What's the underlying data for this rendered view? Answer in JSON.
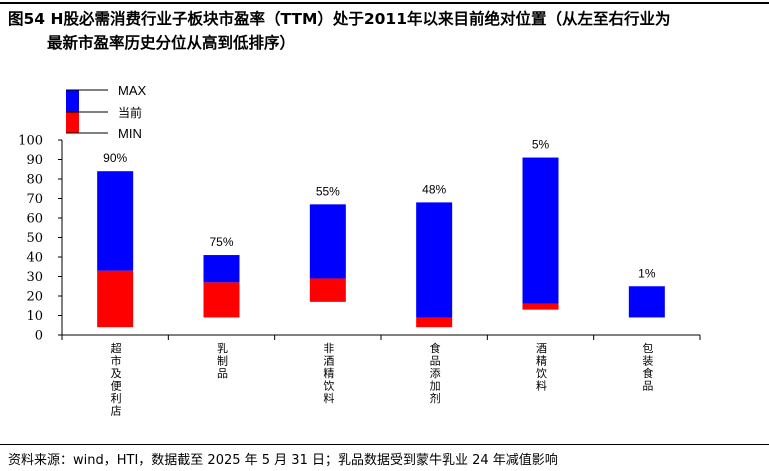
{
  "figure": {
    "title_line1": "图54 H股必需消费行业子板块市盈率（TTM）处于2011年以来目前绝对位置（从左至右行业为",
    "title_line2": "最新市盈率历史分位从高到低排序）",
    "source": "资料来源：wind，HTI，数据截至 2025 年 5 月 31 日；乳品数据受到蒙牛乳业 24 年减值影响"
  },
  "colors": {
    "upper_segment": "#0000FF",
    "lower_segment": "#FF0000",
    "axis": "#000000"
  },
  "chart_data": {
    "type": "bar",
    "categories": [
      "超市及便利店",
      "乳制品",
      "非酒精饮料",
      "食品添加剂",
      "酒精饮料",
      "包装食品"
    ],
    "series": [
      {
        "name": "MAX",
        "values": [
          84,
          41,
          67,
          68,
          91,
          25
        ]
      },
      {
        "name": "当前",
        "values": [
          33,
          27,
          29,
          9,
          16,
          9
        ]
      },
      {
        "name": "MIN",
        "values": [
          4,
          9,
          17,
          4,
          13,
          9
        ]
      }
    ],
    "percentile_labels": [
      "90%",
      "75%",
      "55%",
      "48%",
      "5%",
      "1%"
    ],
    "yticks": [
      0,
      10,
      20,
      30,
      40,
      50,
      60,
      70,
      80,
      90,
      100
    ],
    "ylim": [
      0,
      100
    ],
    "legend": [
      "MAX",
      "当前",
      "MIN"
    ],
    "legend_position": "top-left",
    "grid": false
  }
}
